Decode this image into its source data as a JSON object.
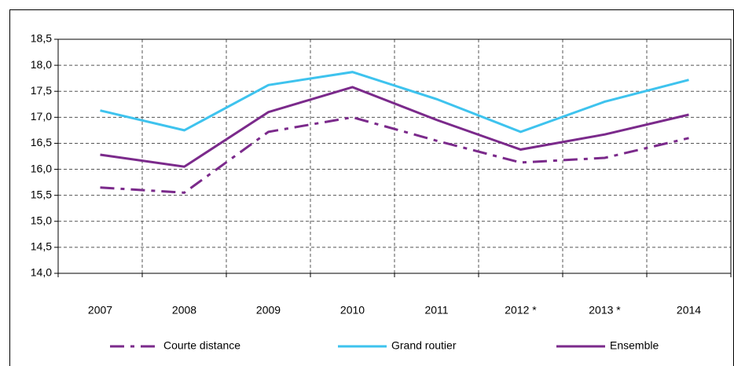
{
  "chart_data": {
    "type": "line",
    "categories": [
      "2007",
      "2008",
      "2009",
      "2010",
      "2011",
      "2012 *",
      "2013 *",
      "2014"
    ],
    "series": [
      {
        "name": "Courte distance",
        "color": "#7b2a8b",
        "style": "dashdot",
        "values": [
          15.65,
          15.55,
          16.72,
          17.0,
          16.55,
          16.13,
          16.22,
          16.6
        ]
      },
      {
        "name": "Grand routier",
        "color": "#3ec3ee",
        "style": "solid",
        "values": [
          17.13,
          16.75,
          17.62,
          17.87,
          17.35,
          16.72,
          17.3,
          17.72
        ]
      },
      {
        "name": "Ensemble",
        "color": "#7b2a8b",
        "style": "solid",
        "values": [
          16.28,
          16.05,
          17.1,
          17.58,
          16.95,
          16.38,
          16.67,
          17.05
        ]
      }
    ],
    "ylim": [
      14.0,
      18.5
    ],
    "yticks": [
      {
        "value": 14.0,
        "label": "14,0"
      },
      {
        "value": 14.5,
        "label": "14,5"
      },
      {
        "value": 15.0,
        "label": "15,0"
      },
      {
        "value": 15.5,
        "label": "15,5"
      },
      {
        "value": 16.0,
        "label": "16,0"
      },
      {
        "value": 16.5,
        "label": "16,5"
      },
      {
        "value": 17.0,
        "label": "17,0"
      },
      {
        "value": 17.5,
        "label": "17,5"
      },
      {
        "value": 18.0,
        "label": "18,0"
      },
      {
        "value": 18.5,
        "label": "18,5"
      }
    ],
    "grid": true,
    "legend": "bottom"
  }
}
